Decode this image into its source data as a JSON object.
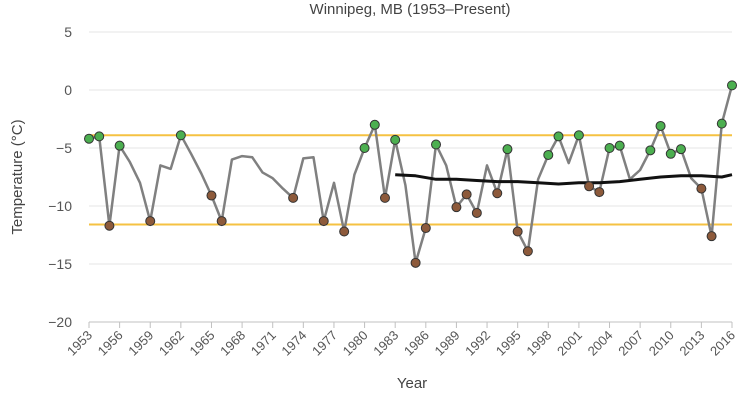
{
  "chart_data": {
    "type": "line",
    "title": "Winnipeg, MB (1953–Present)",
    "xlabel": "Year",
    "ylabel": "Temperature (°C)",
    "xlim": [
      1953,
      2016
    ],
    "ylim": [
      -20,
      5
    ],
    "y_ticks": [
      "5",
      "0",
      "−5",
      "−10",
      "−15",
      "−20"
    ],
    "x_ticks": [
      "1953",
      "1956",
      "1959",
      "1962",
      "1965",
      "1968",
      "1971",
      "1974",
      "1977",
      "1980",
      "1983",
      "1986",
      "1989",
      "1992",
      "1995",
      "1998",
      "2001",
      "2004",
      "2007",
      "2010",
      "2013",
      "2016"
    ],
    "grid": true,
    "reference_lines": [
      -3.9,
      -11.6
    ],
    "colors": {
      "line": "#808080",
      "trend": "#111111",
      "reference": "#f5c242",
      "warm_marker": "#4caf50",
      "cold_marker": "#8d5a3b",
      "grid": "#e6e6e6"
    },
    "series": [
      {
        "role": "annual",
        "x": [
          1953,
          1954,
          1955,
          1956,
          1957,
          1958,
          1959,
          1960,
          1961,
          1962,
          1963,
          1964,
          1965,
          1966,
          1967,
          1968,
          1969,
          1970,
          1971,
          1972,
          1973,
          1974,
          1975,
          1976,
          1977,
          1978,
          1979,
          1980,
          1981,
          1982,
          1983,
          1984,
          1985,
          1986,
          1987,
          1988,
          1989,
          1990,
          1991,
          1992,
          1993,
          1994,
          1995,
          1996,
          1997,
          1998,
          1999,
          2000,
          2001,
          2002,
          2003,
          2004,
          2005,
          2006,
          2007,
          2008,
          2009,
          2010,
          2011,
          2012,
          2013,
          2014,
          2015,
          2016
        ],
        "values": [
          -4.2,
          -4.0,
          -11.7,
          -4.8,
          -6.2,
          -8.0,
          -11.3,
          -6.5,
          -6.8,
          -3.9,
          -5.5,
          -7.2,
          -9.1,
          -11.3,
          -6.0,
          -5.7,
          -5.8,
          -7.1,
          -7.6,
          -8.5,
          -9.3,
          -5.9,
          -5.8,
          -11.3,
          -8.0,
          -12.2,
          -7.3,
          -5.0,
          -3.0,
          -9.3,
          -4.3,
          -8.2,
          -14.9,
          -11.9,
          -4.7,
          -6.5,
          -10.1,
          -9.0,
          -10.6,
          -6.5,
          -8.9,
          -5.1,
          -12.2,
          -13.9,
          -7.7,
          -5.6,
          -4.0,
          -6.3,
          -3.9,
          -8.3,
          -8.8,
          -5.0,
          -4.8,
          -7.7,
          -6.9,
          -5.2,
          -3.1,
          -5.5,
          -5.1,
          -7.6,
          -8.5,
          -12.6,
          -2.9,
          0.4
        ],
        "markers": [
          "warm",
          "warm",
          "cold",
          "warm",
          "",
          "",
          "cold",
          "",
          "",
          "warm",
          "",
          "",
          "cold",
          "cold",
          "",
          "",
          "",
          "",
          "",
          "",
          "cold",
          "",
          "",
          "cold",
          "",
          "cold",
          "",
          "warm",
          "warm",
          "cold",
          "warm",
          "",
          "cold",
          "cold",
          "warm",
          "",
          "cold",
          "cold",
          "cold",
          "",
          "cold",
          "warm",
          "cold",
          "cold",
          "",
          "warm",
          "warm",
          "",
          "warm",
          "cold",
          "cold",
          "warm",
          "warm",
          "",
          "",
          "warm",
          "warm",
          "warm",
          "warm",
          "",
          "cold",
          "cold",
          "warm",
          "warm"
        ]
      },
      {
        "role": "trend",
        "x": [
          1983,
          1985,
          1987,
          1989,
          1991,
          1993,
          1995,
          1997,
          1999,
          2001,
          2003,
          2005,
          2007,
          2009,
          2011,
          2013,
          2015,
          2016
        ],
        "values": [
          -7.3,
          -7.4,
          -7.7,
          -7.7,
          -7.8,
          -7.9,
          -7.9,
          -8.0,
          -8.1,
          -8.0,
          -8.0,
          -7.9,
          -7.7,
          -7.5,
          -7.4,
          -7.4,
          -7.5,
          -7.3
        ]
      }
    ]
  }
}
